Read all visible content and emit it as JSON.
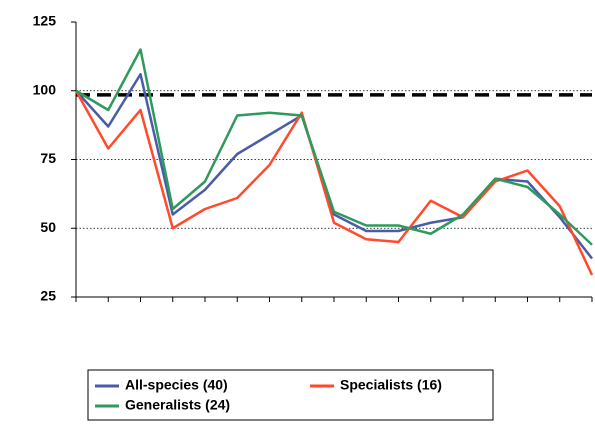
{
  "chart_data": {
    "type": "line",
    "categories": [
      null,
      null,
      null,
      null,
      null,
      null,
      null,
      null,
      null,
      null,
      null,
      null,
      null,
      null,
      null,
      null,
      null
    ],
    "series": [
      {
        "name": "All-species (40)",
        "color": "#4a5ca8",
        "values": [
          100,
          87,
          106,
          55,
          64,
          77,
          84,
          91,
          55,
          49,
          49,
          52,
          54,
          68,
          67,
          54,
          39
        ]
      },
      {
        "name": "Specialists (16)",
        "color": "#ff4b2b",
        "values": [
          100,
          79,
          93,
          50,
          57,
          61,
          73,
          92,
          52,
          46,
          45,
          60,
          54,
          67,
          71,
          58,
          33
        ]
      },
      {
        "name": "Generalists (24)",
        "color": "#2f9a5c",
        "values": [
          100,
          93,
          115,
          57,
          67,
          91,
          92,
          91,
          56,
          51,
          51,
          48,
          55,
          68,
          65,
          55,
          44
        ]
      }
    ],
    "reference_line": 98.5,
    "ylim": [
      25,
      125
    ],
    "yticks": [
      25,
      50,
      75,
      100,
      125
    ],
    "grid": true,
    "legend": "bottom"
  }
}
